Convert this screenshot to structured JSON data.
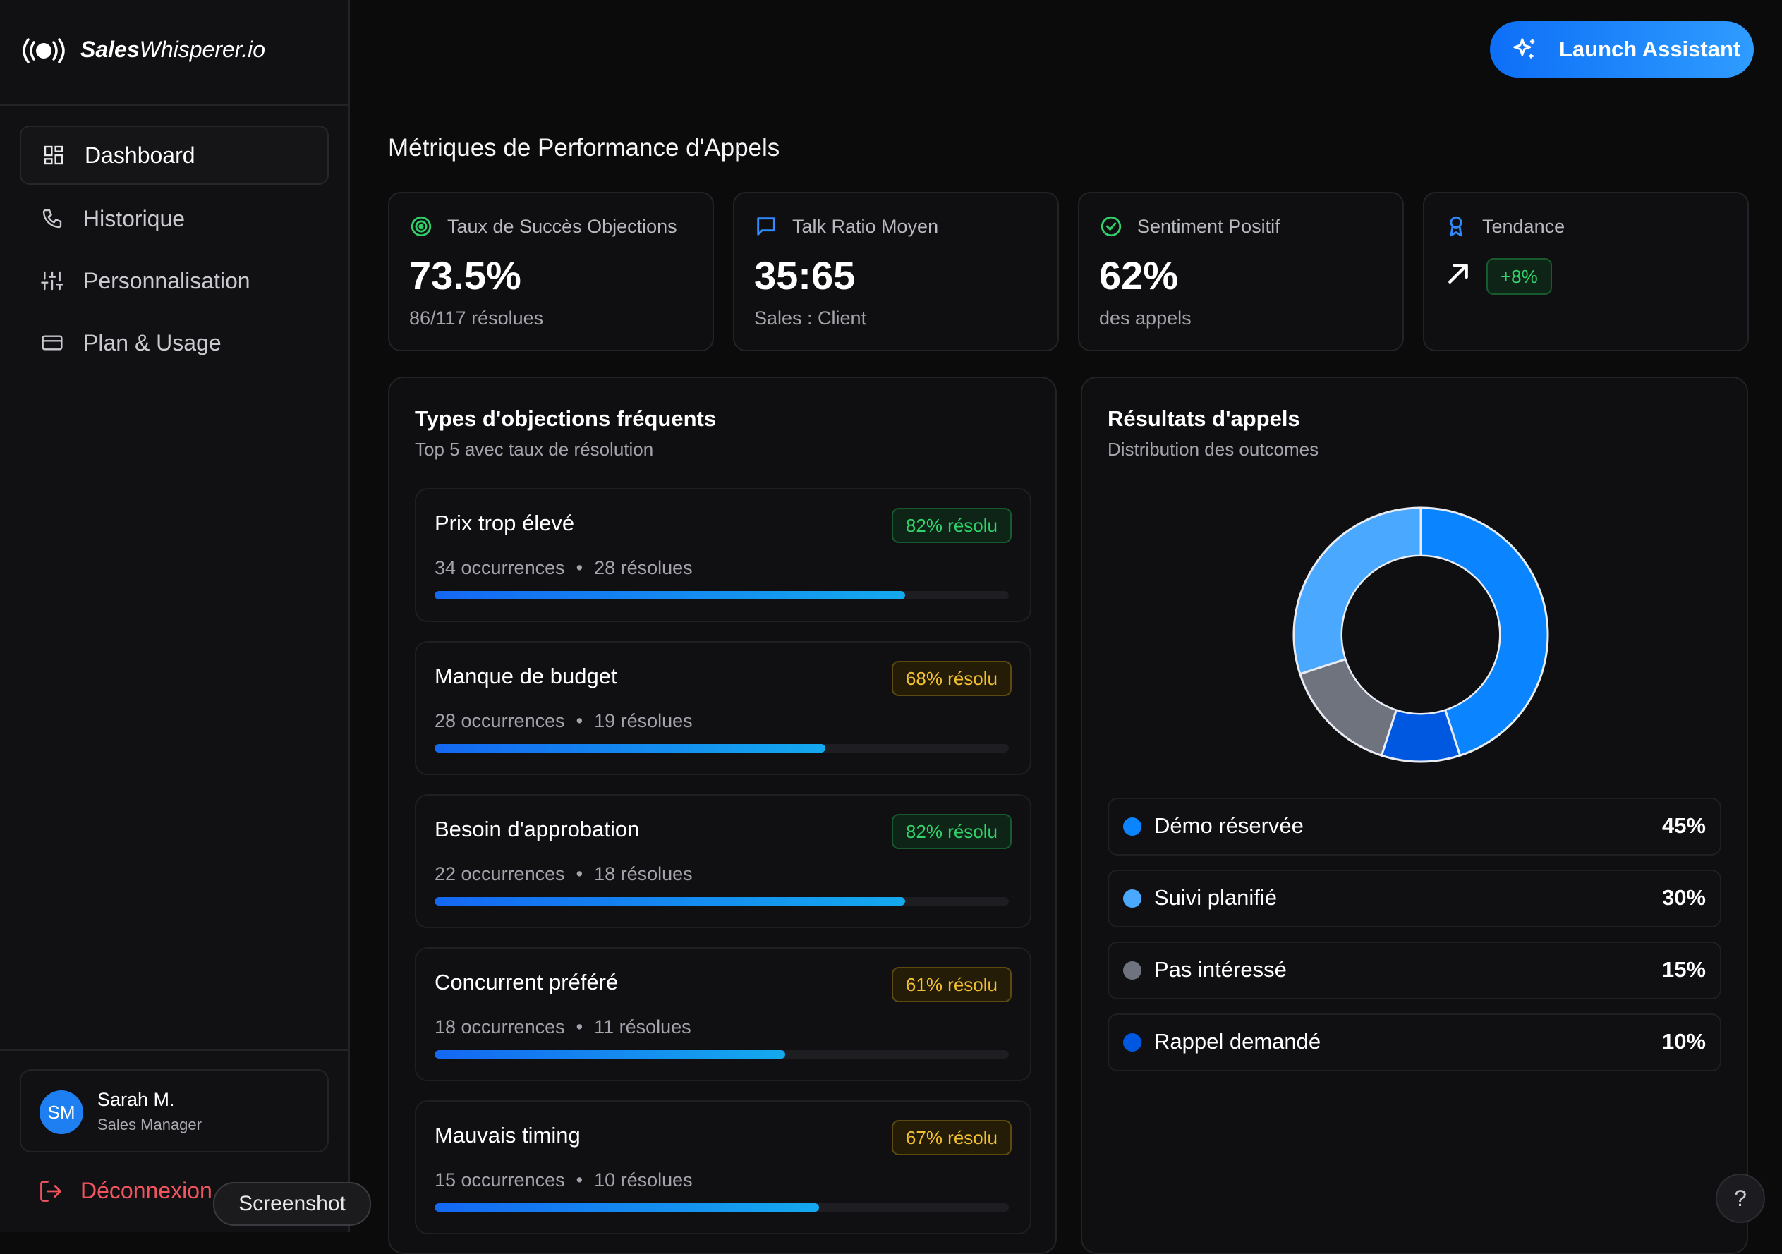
{
  "brand": {
    "name_bold": "Sales",
    "name_rest": "Whisperer.io"
  },
  "nav": [
    {
      "label": "Dashboard",
      "active": true,
      "icon": "grid-icon"
    },
    {
      "label": "Historique",
      "icon": "phone-icon"
    },
    {
      "label": "Personnalisation",
      "icon": "sliders-icon"
    },
    {
      "label": "Plan & Usage",
      "icon": "credit-card-icon"
    }
  ],
  "user": {
    "initials": "SM",
    "name": "Sarah M.",
    "role": "Sales Manager"
  },
  "logout_label": "Déconnexion",
  "tooltip": "Screenshot",
  "launch_label": "Launch Assistant",
  "page_title": "Métriques de Performance d'Appels",
  "kpis": [
    {
      "label": "Taux de Succès Objections",
      "value": "73.5%",
      "sub": "86/117 résolues",
      "icon": "target-icon"
    },
    {
      "label": "Talk Ratio Moyen",
      "value": "35:65",
      "sub": "Sales : Client",
      "icon": "message-icon"
    },
    {
      "label": "Sentiment Positif",
      "value": "62%",
      "sub": "des appels",
      "icon": "check-circle-icon"
    },
    {
      "label": "Tendance",
      "badge": "+8%",
      "icon": "award-icon"
    }
  ],
  "objections": {
    "title": "Types d'objections fréquents",
    "subtitle": "Top 5 avec taux de résolution",
    "separator": "•",
    "items": [
      {
        "name": "Prix trop élevé",
        "badge": "82% résolu",
        "occ": "34 occurrences",
        "res": "28 résolues",
        "pct": 0.82,
        "tone": "green"
      },
      {
        "name": "Manque de budget",
        "badge": "68% résolu",
        "occ": "28 occurrences",
        "res": "19 résolues",
        "pct": 0.68,
        "tone": "yellow"
      },
      {
        "name": "Besoin d'approbation",
        "badge": "82% résolu",
        "occ": "22 occurrences",
        "res": "18 résolues",
        "pct": 0.82,
        "tone": "green"
      },
      {
        "name": "Concurrent préféré",
        "badge": "61% résolu",
        "occ": "18 occurrences",
        "res": "11 résolues",
        "pct": 0.61,
        "tone": "yellow"
      },
      {
        "name": "Mauvais timing",
        "badge": "67% résolu",
        "occ": "15 occurrences",
        "res": "10 résolues",
        "pct": 0.67,
        "tone": "yellow"
      }
    ]
  },
  "results": {
    "title": "Résultats d'appels",
    "subtitle": "Distribution des outcomes",
    "legend": [
      {
        "name": "Démo réservée",
        "value": "45%",
        "color": "#0a84ff"
      },
      {
        "name": "Suivi planifié",
        "value": "30%",
        "color": "#4aa8ff"
      },
      {
        "name": "Pas intéressé",
        "value": "15%",
        "color": "#6e737d"
      },
      {
        "name": "Rappel demandé",
        "value": "10%",
        "color": "#0057e0"
      }
    ]
  },
  "chart_data": {
    "type": "pie",
    "categories": [
      "Démo réservée",
      "Rappel demandé",
      "Pas intéressé",
      "Suivi planifié"
    ],
    "values": [
      45,
      10,
      15,
      30
    ],
    "colors": [
      "#0a84ff",
      "#0057e0",
      "#6e737d",
      "#4aa8ff"
    ]
  },
  "help_label": "?"
}
